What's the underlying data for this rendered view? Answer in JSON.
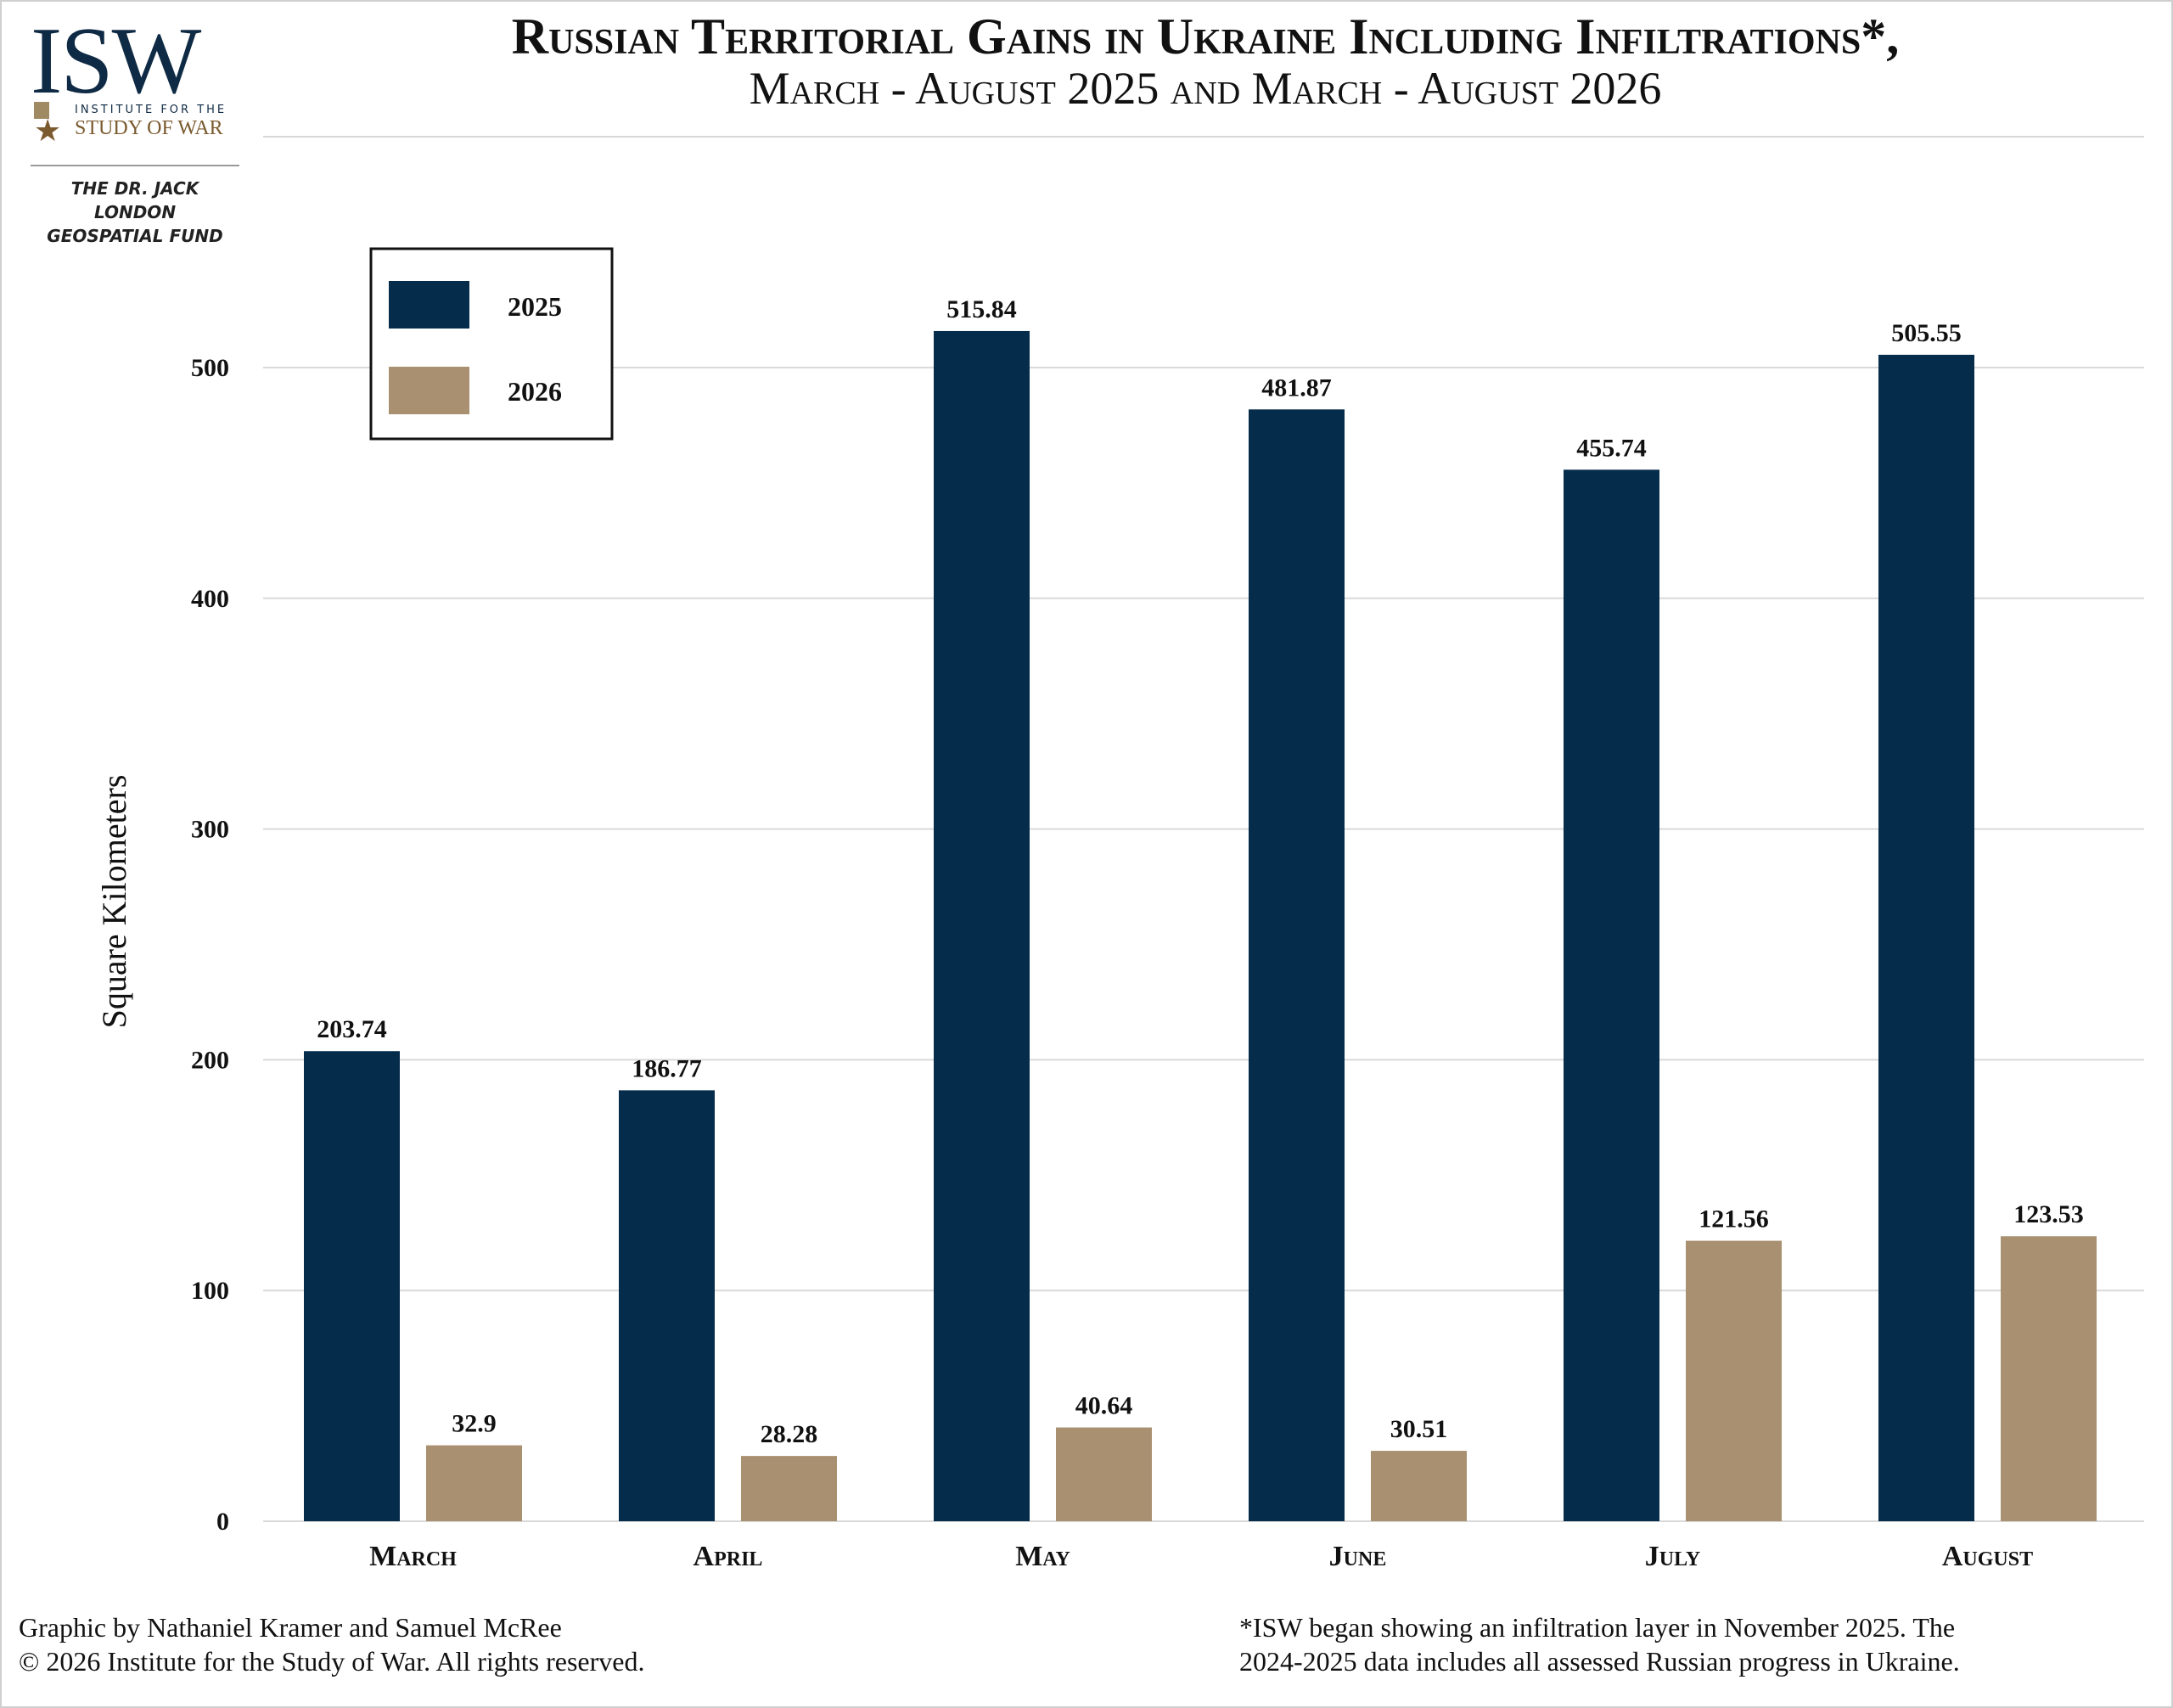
{
  "header": {
    "title": "Russian Territorial Gains in Ukraine Including Infiltrations*,",
    "subtitle": "March - August 2025 and March - August 2026"
  },
  "logo": {
    "mark": "ISW",
    "institute_line": "INSTITUTE FOR THE",
    "name_line": "STUDY OF WAR",
    "star_icon": "star-icon",
    "fund_line1": "THE DR. JACK LONDON",
    "fund_line2": "GEOSPATIAL FUND"
  },
  "footer": {
    "credit_line1": "Graphic by Nathaniel Kramer and Samuel McRee",
    "credit_line2": "© 2026 Institute for the Study of War. All rights reserved.",
    "note_line1": "*ISW began showing an infiltration layer in November 2025.  The",
    "note_line2": "2024-2025 data includes all assessed Russian progress in Ukraine."
  },
  "colors": {
    "series_2025": "#062c4b",
    "series_2026": "#a89070",
    "grid": "#d9d9d9"
  },
  "chart_data": {
    "type": "bar",
    "title": "Russian Territorial Gains in Ukraine Including Infiltrations*,",
    "subtitle": "March - August 2025 and March - August 2026",
    "xlabel": "",
    "ylabel": "Square Kilometers",
    "categories": [
      "March",
      "April",
      "May",
      "June",
      "July",
      "August"
    ],
    "series": [
      {
        "name": "2025",
        "values": [
          203.74,
          186.77,
          515.84,
          481.87,
          455.74,
          505.55
        ]
      },
      {
        "name": "2026",
        "values": [
          32.9,
          28.28,
          40.64,
          30.51,
          121.56,
          123.53
        ]
      }
    ],
    "data_labels": [
      [
        "203.74",
        "186.77",
        "515.84",
        "481.87",
        "455.74",
        "505.55"
      ],
      [
        "32.9",
        "28.28",
        "40.64",
        "30.51",
        "121.56",
        "123.53"
      ]
    ],
    "yticks": [
      0,
      100,
      200,
      300,
      400,
      500
    ],
    "ylim": [
      0,
      500
    ],
    "grid": true,
    "legend_position": "top-left"
  }
}
